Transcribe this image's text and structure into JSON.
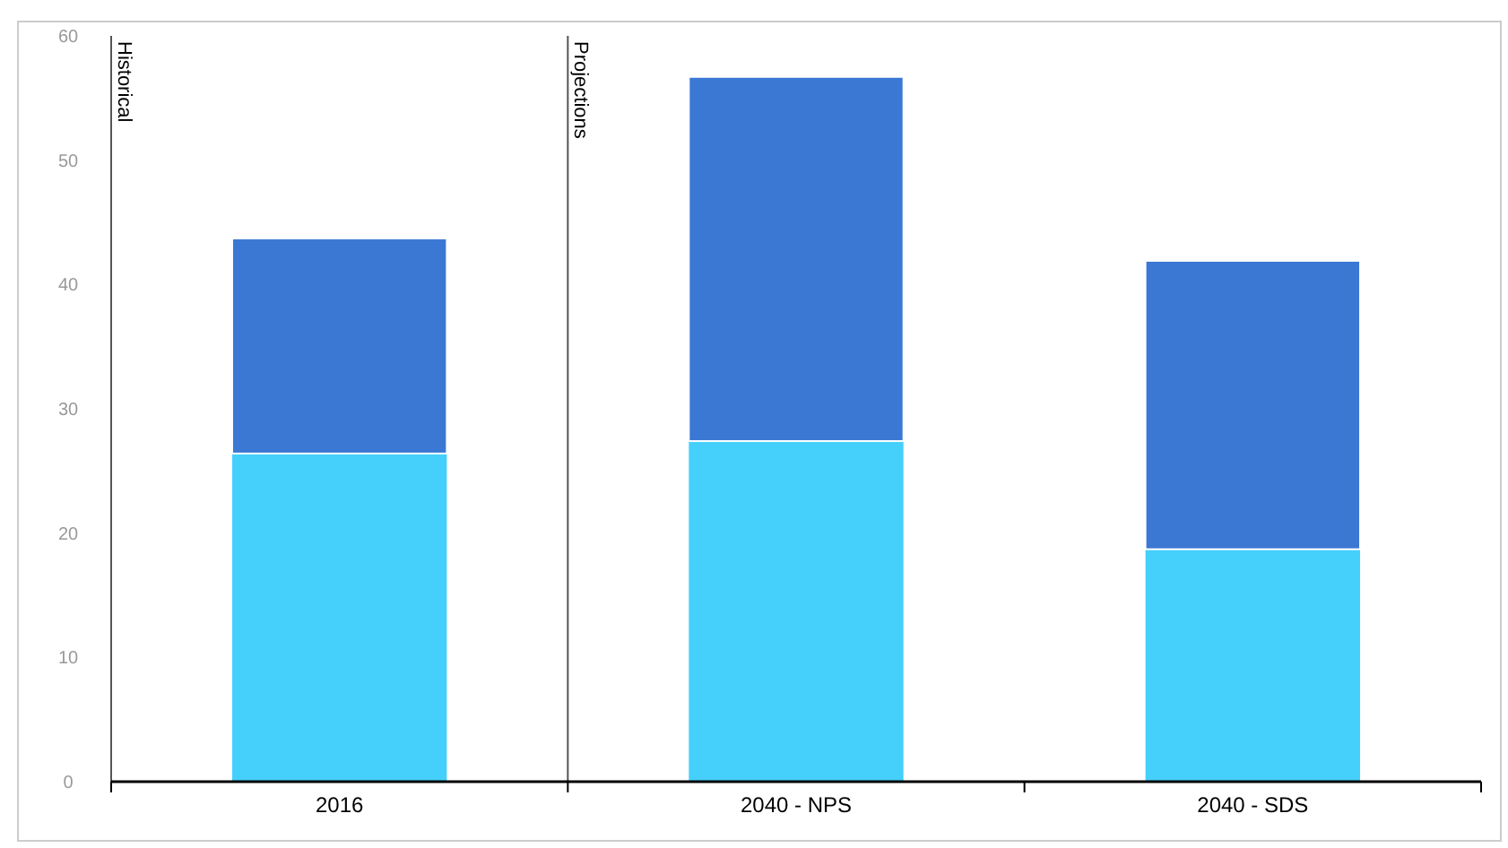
{
  "chart_data": {
    "type": "bar",
    "stacked": true,
    "categories": [
      "2016",
      "2040 - NPS",
      "2040 - SDS"
    ],
    "series": [
      {
        "color": "#45d0fc",
        "values": [
          26.4,
          27.4,
          18.7
        ]
      },
      {
        "color": "#3a78d4",
        "values": [
          17.3,
          29.3,
          23.2
        ]
      }
    ],
    "ylim": [
      0,
      60
    ],
    "yticks": [
      0,
      10,
      20,
      30,
      40,
      50,
      60
    ],
    "annotations": [
      "Historical",
      "Projections"
    ],
    "grid": false
  }
}
